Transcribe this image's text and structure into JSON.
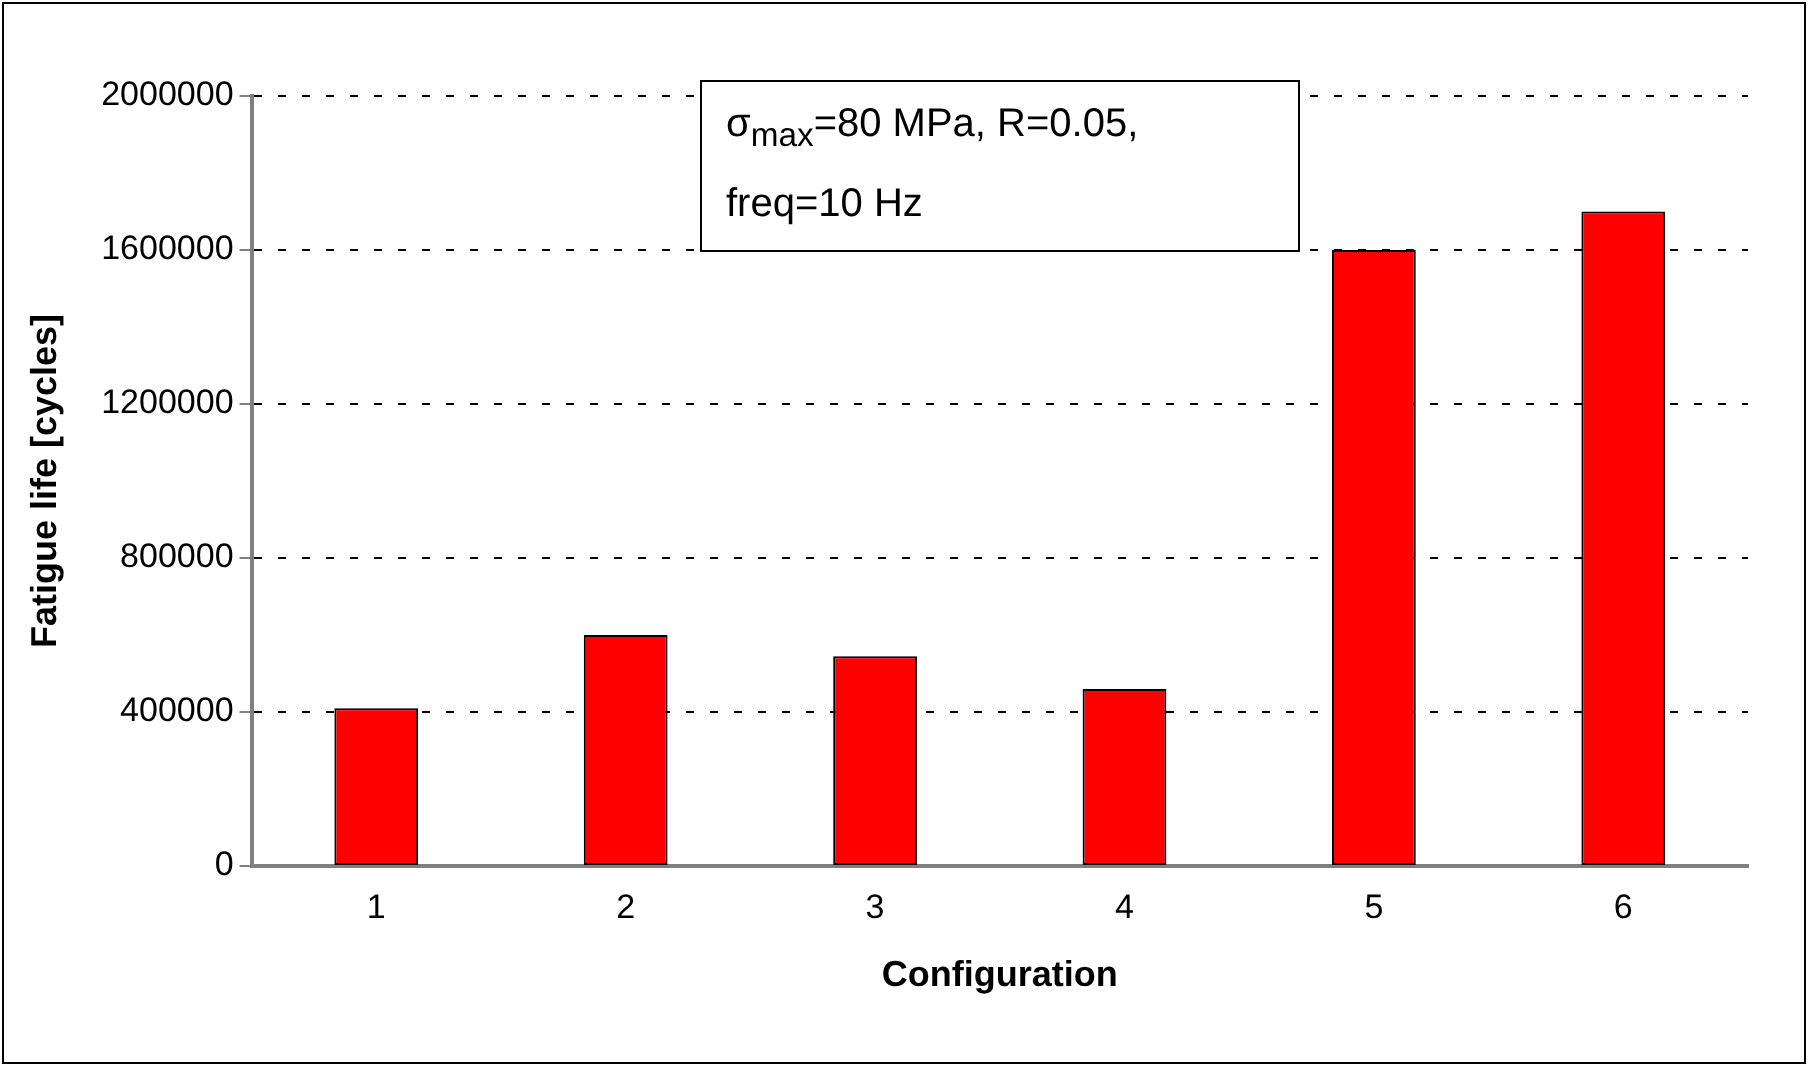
{
  "chart_data": {
    "type": "bar",
    "xlabel": "Configuration",
    "ylabel": "Fatigue life [cycles]",
    "categories": [
      "1",
      "2",
      "3",
      "4",
      "5",
      "6"
    ],
    "values": [
      410000,
      600000,
      545000,
      460000,
      1600000,
      1700000
    ],
    "color": "#ff0000",
    "ylim": [
      0,
      2000000
    ],
    "yticks": [
      0,
      400000,
      800000,
      1200000,
      1600000,
      2000000
    ],
    "grid": "y",
    "legend": false,
    "annotations": [
      "σ$_{max}$=80 MPa, R=0.05, freq=10 Hz"
    ]
  }
}
